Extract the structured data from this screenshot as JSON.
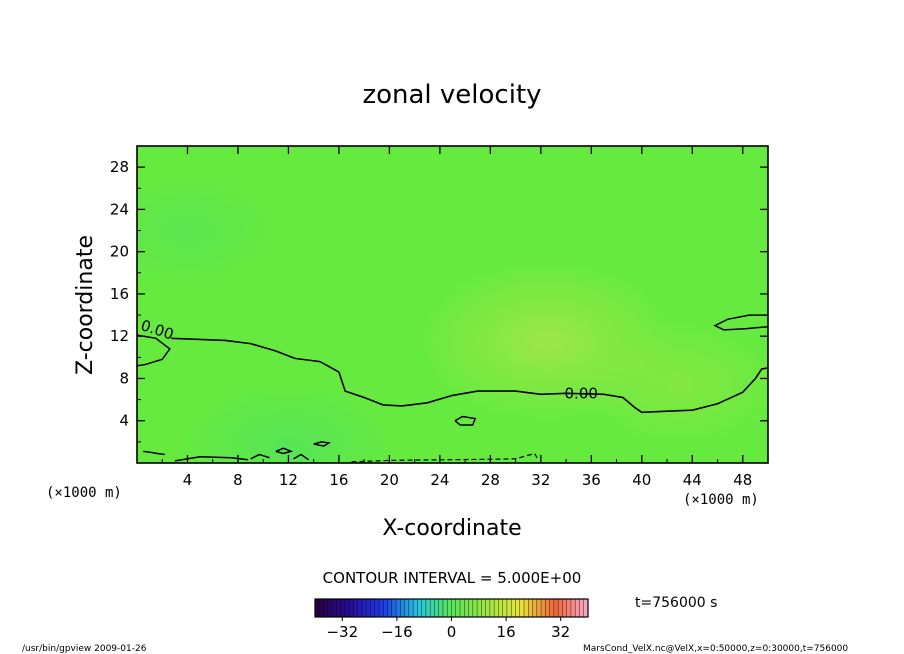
{
  "chart_data": {
    "type": "heatmap",
    "title": "zonal velocity",
    "xlabel": "X-coordinate",
    "ylabel": "Z-coordinate",
    "x_unit": "(×1000 m)",
    "y_unit": "(×1000 m)",
    "xlim": [
      0,
      50
    ],
    "ylim": [
      0,
      30
    ],
    "x_ticks": [
      4,
      8,
      12,
      16,
      20,
      24,
      28,
      32,
      36,
      40,
      44,
      48
    ],
    "y_ticks": [
      4,
      8,
      12,
      16,
      20,
      24,
      28
    ],
    "contour_interval_label": "CONTOUR INTERVAL = 5.000E+00",
    "time_label": "t=756000 s",
    "colorbar": {
      "vmin": -40,
      "vmax": 40,
      "ticks": [
        -32,
        -16,
        0,
        16,
        32
      ]
    },
    "contour_labels": [
      {
        "text": "0.00",
        "x": 1.6,
        "y": 12.6
      },
      {
        "text": "0.00",
        "x": 35.2,
        "y": 6.6
      }
    ],
    "zero_contour": {
      "level": 0,
      "points": [
        [
          2.7,
          11.8
        ],
        [
          7.0,
          11.6
        ],
        [
          9.0,
          11.3
        ],
        [
          11.0,
          10.6
        ],
        [
          12.5,
          9.9
        ],
        [
          14.5,
          9.6
        ],
        [
          16.0,
          8.6
        ],
        [
          16.5,
          6.8
        ],
        [
          18.0,
          6.2
        ],
        [
          19.5,
          5.5
        ],
        [
          21.0,
          5.4
        ],
        [
          23.0,
          5.7
        ],
        [
          25.0,
          6.4
        ],
        [
          27.0,
          6.8
        ],
        [
          30.0,
          6.8
        ],
        [
          32.0,
          6.5
        ],
        [
          34.0,
          6.6
        ],
        [
          37.0,
          6.5
        ],
        [
          38.5,
          6.2
        ],
        [
          39.5,
          5.2
        ],
        [
          40.0,
          4.8
        ],
        [
          42.0,
          4.9
        ],
        [
          44.0,
          5.0
        ],
        [
          46.0,
          5.6
        ],
        [
          48.0,
          6.7
        ],
        [
          49.0,
          8.0
        ],
        [
          49.5,
          8.9
        ],
        [
          50.0,
          9.0
        ]
      ]
    },
    "closed_contours": [
      [
        [
          0,
          12.1
        ],
        [
          1.5,
          11.8
        ],
        [
          2.6,
          10.8
        ],
        [
          2.0,
          9.8
        ],
        [
          0.6,
          9.3
        ],
        [
          0,
          9.2
        ]
      ],
      [
        [
          50,
          14.0
        ],
        [
          48.5,
          14.0
        ],
        [
          46.8,
          13.6
        ],
        [
          45.8,
          13.0
        ],
        [
          46.5,
          12.6
        ],
        [
          48.2,
          12.7
        ],
        [
          50,
          12.9
        ]
      ],
      [
        [
          25.2,
          4.0
        ],
        [
          25.8,
          4.4
        ],
        [
          26.8,
          4.2
        ],
        [
          26.6,
          3.6
        ],
        [
          25.6,
          3.6
        ],
        [
          25.2,
          4.0
        ]
      ],
      [
        [
          14.0,
          1.8
        ],
        [
          14.6,
          2.0
        ],
        [
          15.2,
          1.9
        ],
        [
          14.8,
          1.6
        ],
        [
          14.0,
          1.8
        ]
      ],
      [
        [
          11.0,
          1.1
        ],
        [
          11.6,
          1.4
        ],
        [
          12.2,
          1.1
        ],
        [
          11.6,
          0.9
        ],
        [
          11.0,
          1.1
        ]
      ],
      [
        [
          0.5,
          1.1
        ],
        [
          1.1,
          1.0
        ],
        [
          1.6,
          0.9
        ],
        [
          2.2,
          0.8
        ]
      ],
      [
        [
          9.0,
          0.4
        ],
        [
          9.7,
          0.8
        ],
        [
          10.5,
          0.5
        ]
      ],
      [
        [
          12.4,
          0.4
        ],
        [
          13.0,
          0.8
        ],
        [
          13.6,
          0.3
        ]
      ],
      [
        [
          3.0,
          0.2
        ],
        [
          5.0,
          0.6
        ],
        [
          7.5,
          0.5
        ],
        [
          8.8,
          0.3
        ]
      ]
    ],
    "negative_contour": [
      [
        17.0,
        0.1
      ],
      [
        20.0,
        0.25
      ],
      [
        24.0,
        0.3
      ],
      [
        28.0,
        0.35
      ],
      [
        30.0,
        0.4
      ],
      [
        31.5,
        0.9
      ],
      [
        31.8,
        0.3
      ]
    ],
    "field_highlights": [
      {
        "x": 32.5,
        "y": 11.5,
        "strength": 0.9,
        "note": "slightly positive (yellower) region"
      },
      {
        "x": 43.0,
        "y": 7.5,
        "strength": 0.5,
        "note": "slightly positive region"
      },
      {
        "x": 4.0,
        "y": 22.0,
        "strength": -0.4,
        "note": "slightly negative region"
      },
      {
        "x": 12.0,
        "y": 1.5,
        "strength": -0.6,
        "note": "slightly negative region near ground"
      }
    ]
  },
  "footer": {
    "left": "/usr/bin/gpview  2009-01-26",
    "right": "MarsCond_VelX.nc@VelX,x=0:50000,z=0:30000,t=756000"
  }
}
